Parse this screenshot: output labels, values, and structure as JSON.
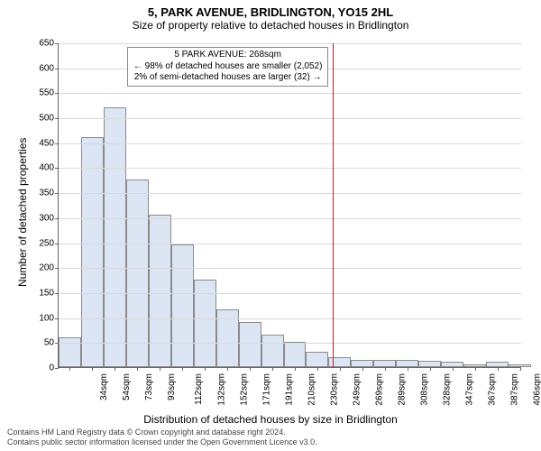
{
  "title_line1": "5, PARK AVENUE, BRIDLINGTON, YO15 2HL",
  "title_line2": "Size of property relative to detached houses in Bridlington",
  "title1_fontsize": 13,
  "title2_fontsize": 12,
  "ylabel": "Number of detached properties",
  "xlabel": "Distribution of detached houses by size in Bridlington",
  "axis_label_fontsize": 12,
  "tick_fontsize": 10,
  "background_color": "#ffffff",
  "grid_color": "#d9d9d9",
  "bar_fill": "#dbe5f4",
  "bar_edge": "#8b8b8b",
  "marker_color": "#ff0000",
  "marker_x_value": 268,
  "annot_line1": "5 PARK AVENUE: 268sqm",
  "annot_line2": "← 98% of detached houses are smaller (2,052)",
  "annot_line3": "2% of semi-detached houses are larger (32) →",
  "annot_fontsize": 10,
  "ylim": [
    0,
    650
  ],
  "ytick_step": 50,
  "x_min": 24,
  "x_max": 436,
  "bin_width": 20,
  "x_tick_labels": [
    "34sqm",
    "54sqm",
    "73sqm",
    "93sqm",
    "112sqm",
    "132sqm",
    "152sqm",
    "171sqm",
    "191sqm",
    "210sqm",
    "230sqm",
    "249sqm",
    "269sqm",
    "289sqm",
    "308sqm",
    "328sqm",
    "347sqm",
    "367sqm",
    "387sqm",
    "406sqm",
    "426sqm"
  ],
  "bin_counts": [
    60,
    460,
    520,
    375,
    305,
    245,
    175,
    115,
    90,
    65,
    50,
    30,
    20,
    15,
    15,
    15,
    13,
    10,
    5,
    10,
    5
  ],
  "footer_line1": "Contains HM Land Registry data © Crown copyright and database right 2024.",
  "footer_line2": "Contains public sector information licensed under the Open Government Licence v3.0.",
  "footer_fontsize": 9
}
